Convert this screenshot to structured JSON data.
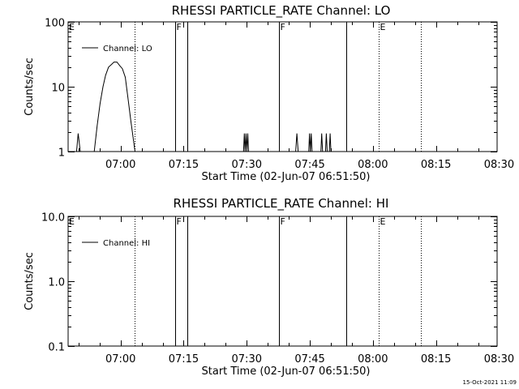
{
  "footer": {
    "timestamp": "15-Oct-2021 11:09"
  },
  "chart_data": [
    {
      "type": "line",
      "title": "RHESSI PARTICLE_RATE Channel: LO",
      "xlabel": "Start Time (02-Jun-07 06:51:50)",
      "ylabel": "Counts/sec",
      "yscale": "log",
      "ylim": [
        1,
        100
      ],
      "yticks": [
        1,
        10,
        100
      ],
      "ytick_labels": [
        "1",
        "10",
        "100"
      ],
      "xlim_minutes": [
        -4.3,
        97.7
      ],
      "xticks_minutes": [
        8.17,
        23.17,
        38.17,
        53.17,
        68.17,
        83.17,
        98.17
      ],
      "xtick_labels": [
        "07:00",
        "07:15",
        "07:30",
        "07:45",
        "08:00",
        "08:15",
        "08:30"
      ],
      "legend": {
        "label": "Channel: LO",
        "placement": "top-left"
      },
      "series": [
        {
          "name": "Channel: LO",
          "points": [
            [
              -2.3,
              1
            ],
            [
              -1.9,
              1.9
            ],
            [
              -1.4,
              1
            ],
            [
              1.9,
              1
            ],
            [
              2.6,
              2.5
            ],
            [
              3.3,
              5.5
            ],
            [
              4.0,
              10
            ],
            [
              4.6,
              15
            ],
            [
              5.3,
              20
            ],
            [
              6.0,
              22
            ],
            [
              6.6,
              24
            ],
            [
              7.3,
              24
            ],
            [
              8.0,
              21
            ],
            [
              8.6,
              19
            ],
            [
              9.3,
              14
            ],
            [
              9.9,
              7
            ],
            [
              10.6,
              3
            ],
            [
              11.3,
              1.4
            ],
            [
              11.6,
              1
            ],
            [
              37.4,
              1
            ],
            [
              37.6,
              1.9
            ],
            [
              37.8,
              1
            ],
            [
              38.0,
              1.9
            ],
            [
              38.2,
              1
            ],
            [
              38.4,
              1.9
            ],
            [
              38.6,
              1
            ],
            [
              49.8,
              1
            ],
            [
              50.1,
              1.9
            ],
            [
              50.4,
              1
            ],
            [
              52.9,
              1
            ],
            [
              53.1,
              1.9
            ],
            [
              53.3,
              1
            ],
            [
              53.5,
              1.9
            ],
            [
              53.7,
              1
            ],
            [
              55.8,
              1
            ],
            [
              56.0,
              1.9
            ],
            [
              56.2,
              1
            ],
            [
              56.9,
              1
            ],
            [
              57.1,
              1.9
            ],
            [
              57.3,
              1
            ],
            [
              57.8,
              1
            ],
            [
              58.0,
              1.9
            ],
            [
              58.2,
              1
            ]
          ]
        }
      ],
      "vertical_lines": [
        {
          "x_minutes": 11.6,
          "style": "dotted",
          "label": ""
        },
        {
          "x_minutes": 21.2,
          "style": "solid",
          "label": "F"
        },
        {
          "x_minutes": 24.0,
          "style": "solid",
          "label": ""
        },
        {
          "x_minutes": 45.9,
          "style": "solid",
          "label": "F"
        },
        {
          "x_minutes": 61.8,
          "style": "solid",
          "label": ""
        },
        {
          "x_minutes": 69.6,
          "style": "dotted",
          "label": "E"
        },
        {
          "x_minutes": 79.6,
          "style": "dotted",
          "label": ""
        }
      ],
      "edge_label": "E"
    },
    {
      "type": "line",
      "title": "RHESSI PARTICLE_RATE Channel: HI",
      "xlabel": "Start Time (02-Jun-07 06:51:50)",
      "ylabel": "Counts/sec",
      "yscale": "log",
      "ylim": [
        0.1,
        10
      ],
      "yticks": [
        0.1,
        1,
        10
      ],
      "ytick_labels": [
        "0.1",
        "1.0",
        "10.0"
      ],
      "xlim_minutes": [
        -4.3,
        97.7
      ],
      "xticks_minutes": [
        8.17,
        23.17,
        38.17,
        53.17,
        68.17,
        83.17,
        98.17
      ],
      "xtick_labels": [
        "07:00",
        "07:15",
        "07:30",
        "07:45",
        "08:00",
        "08:15",
        "08:30"
      ],
      "legend": {
        "label": "Channel: HI",
        "placement": "top-left"
      },
      "series": [
        {
          "name": "Channel: HI",
          "points": []
        }
      ],
      "vertical_lines": [
        {
          "x_minutes": 11.6,
          "style": "dotted",
          "label": ""
        },
        {
          "x_minutes": 21.2,
          "style": "solid",
          "label": "F"
        },
        {
          "x_minutes": 24.0,
          "style": "solid",
          "label": ""
        },
        {
          "x_minutes": 45.9,
          "style": "solid",
          "label": "F"
        },
        {
          "x_minutes": 61.8,
          "style": "solid",
          "label": ""
        },
        {
          "x_minutes": 69.6,
          "style": "dotted",
          "label": "E"
        },
        {
          "x_minutes": 79.6,
          "style": "dotted",
          "label": ""
        }
      ],
      "edge_label": "E"
    }
  ]
}
